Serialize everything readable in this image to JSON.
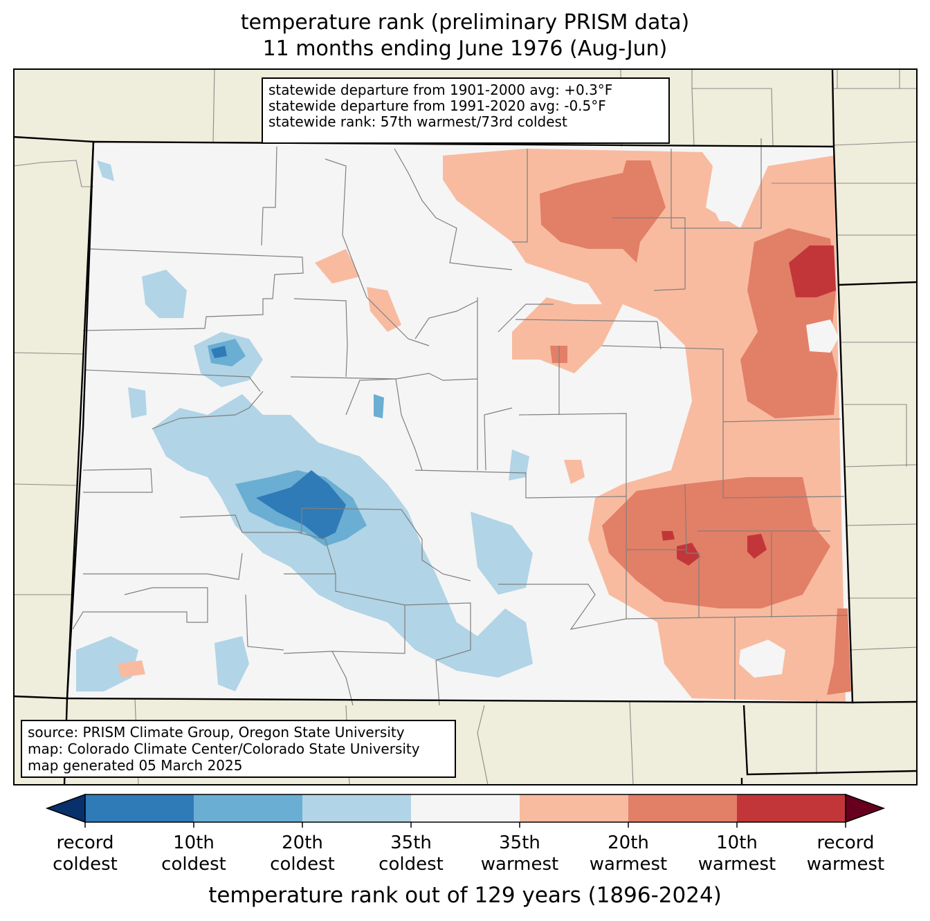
{
  "title": {
    "line1": "temperature rank (preliminary PRISM data)",
    "line2": "11 months ending June 1976 (Aug-Jun)"
  },
  "stats": {
    "line1": "statewide departure from 1901-2000 avg: +0.3°F",
    "line2": "statewide departure from 1991-2020 avg: -0.5°F",
    "line3": "statewide rank: 57th warmest/73rd coldest"
  },
  "source": {
    "line1": "source: PRISM Climate Group, Oregon State University",
    "line2": "map: Colorado Climate Center/Colorado State University",
    "line3": "map generated 05 March 2025"
  },
  "colorbar": {
    "label": "temperature rank out of 129 years (1896-2024)",
    "colors": [
      "#08306b",
      "#2f7bb8",
      "#6aaed3",
      "#b1d4e6",
      "#f5f5f5",
      "#f8bba0",
      "#e27f67",
      "#c23639",
      "#67001f"
    ],
    "ticks": [
      {
        "l1": "record",
        "l2": "coldest"
      },
      {
        "l1": "10th",
        "l2": "coldest"
      },
      {
        "l1": "20th",
        "l2": "coldest"
      },
      {
        "l1": "35th",
        "l2": "coldest"
      },
      {
        "l1": "35th",
        "l2": "warmest"
      },
      {
        "l1": "20th",
        "l2": "warmest"
      },
      {
        "l1": "10th",
        "l2": "warmest"
      },
      {
        "l1": "record",
        "l2": "warmest"
      }
    ]
  },
  "map_colors": {
    "outside": "#efeddb",
    "state_fill": "#f5f5f5",
    "cold35": "#b1d4e6",
    "cold20": "#6aaed3",
    "cold10": "#2f7bb8",
    "warm35": "#f8bba0",
    "warm20": "#e27f67",
    "warm10": "#c23639"
  }
}
